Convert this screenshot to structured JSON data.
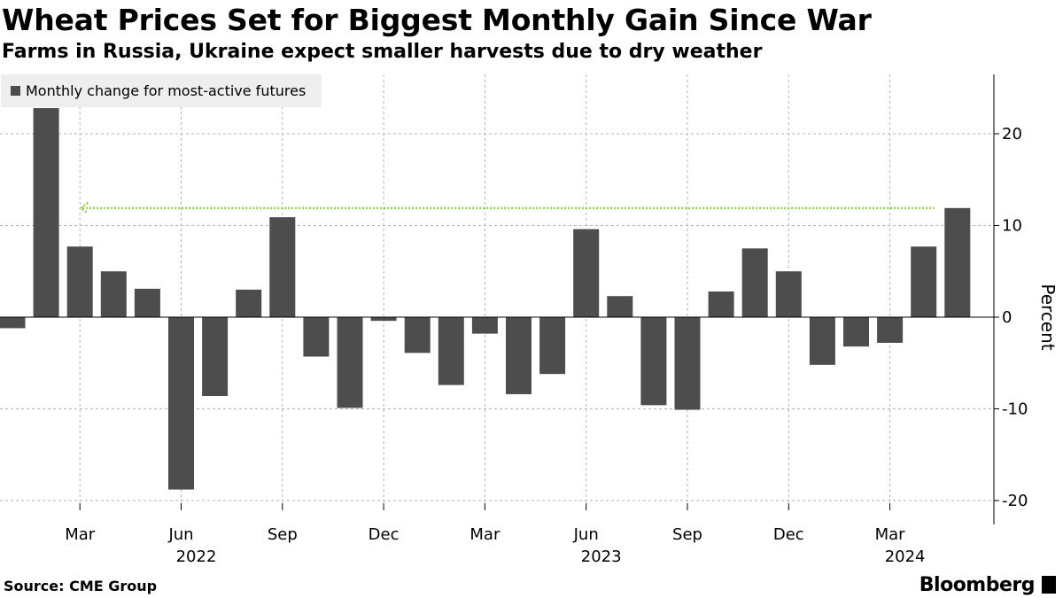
{
  "header": {
    "title": "Wheat Prices Set for Biggest Monthly Gain Since War",
    "subtitle": "Farms in Russia, Ukraine expect smaller harvests due to dry weather"
  },
  "footer": {
    "source": "Source: CME Group",
    "brand": "Bloomberg"
  },
  "colors": {
    "bar": "#4d4d4d",
    "annotation": "#8fd14f",
    "grid": "#b3b3b3",
    "legend_bg": "#eeeeee"
  },
  "chart_data": {
    "type": "bar",
    "title": "Wheat Prices Set for Biggest Monthly Gain Since War",
    "subtitle": "Farms in Russia, Ukraine expect smaller harvests due to dry weather",
    "ylabel": "Percent",
    "xlabel": "",
    "ylim": [
      -22.5,
      26.5
    ],
    "yticks": [
      -20,
      -10,
      0,
      10,
      20
    ],
    "ytick_labels": [
      "-20",
      "-10",
      "0",
      "10",
      "20"
    ],
    "grid": true,
    "legend": {
      "position": "top-left",
      "label": "Monthly change for most-active futures"
    },
    "series": [
      {
        "name": "Monthly change for most-active futures",
        "categories": [
          "Jan 2022",
          "Feb 2022",
          "Mar 2022",
          "Apr 2022",
          "May 2022",
          "Jun 2022",
          "Jul 2022",
          "Aug 2022",
          "Sep 2022",
          "Oct 2022",
          "Nov 2022",
          "Dec 2022",
          "Jan 2023",
          "Feb 2023",
          "Mar 2023",
          "Apr 2023",
          "May 2023",
          "Jun 2023",
          "Jul 2023",
          "Aug 2023",
          "Sep 2023",
          "Oct 2023",
          "Nov 2023",
          "Dec 2023",
          "Jan 2024",
          "Feb 2024",
          "Mar 2024",
          "Apr 2024",
          "May 2024"
        ],
        "values": [
          -1.2,
          22.8,
          7.7,
          5.0,
          3.1,
          -18.8,
          -8.6,
          3.0,
          10.9,
          -4.3,
          -9.9,
          -0.4,
          -3.9,
          -7.4,
          -1.8,
          -8.4,
          -6.2,
          9.6,
          2.3,
          -9.6,
          -10.1,
          2.8,
          7.5,
          5.0,
          -5.2,
          -3.2,
          -2.8,
          7.7,
          11.9
        ]
      }
    ],
    "x_tick_labels": [
      {
        "category": "Mar 2022",
        "label": "Mar"
      },
      {
        "category": "Jun 2022",
        "label": "Jun"
      },
      {
        "category": "Sep 2022",
        "label": "Sep"
      },
      {
        "category": "Dec 2022",
        "label": "Dec"
      },
      {
        "category": "Mar 2023",
        "label": "Mar"
      },
      {
        "category": "Jun 2023",
        "label": "Jun"
      },
      {
        "category": "Sep 2023",
        "label": "Sep"
      },
      {
        "category": "Dec 2023",
        "label": "Dec"
      },
      {
        "category": "Mar 2024",
        "label": "Mar"
      }
    ],
    "year_labels": [
      {
        "category": "Jun 2022",
        "label": "2022"
      },
      {
        "category": "Jun 2023",
        "label": "2023"
      },
      {
        "category": "Mar 2024",
        "label": "2024"
      }
    ],
    "annotations": [
      {
        "type": "dotted-arrow",
        "y": 11.9,
        "from_category": "May 2024",
        "to_category": "Mar 2022",
        "color": "#8fd14f"
      }
    ]
  }
}
